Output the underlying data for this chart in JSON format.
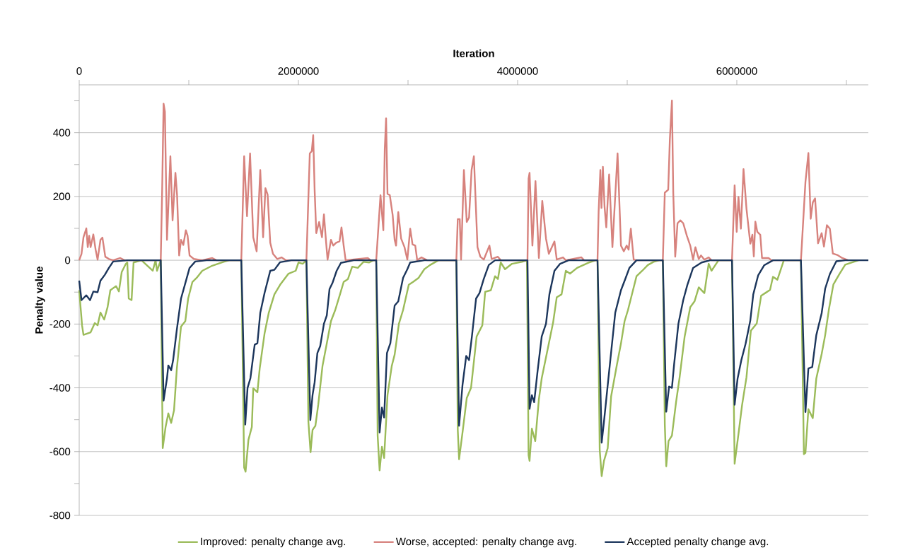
{
  "chart_data": {
    "type": "line",
    "xlabel": "Iteration",
    "ylabel": "Penalty value",
    "xlim": [
      0,
      7200000
    ],
    "ylim": [
      -800,
      550
    ],
    "xticks": [
      0,
      {
        "value": 1000000,
        "label": null
      },
      2000000,
      {
        "value": 3000000,
        "label": null
      },
      4000000,
      {
        "value": 5000000,
        "label": null
      },
      6000000,
      {
        "value": 7000000,
        "label": null
      }
    ],
    "yticks": [
      -800,
      {
        "value": -700,
        "label": null
      },
      -600,
      {
        "value": -500,
        "label": null
      },
      -400,
      {
        "value": -300,
        "label": null
      },
      -200,
      {
        "value": -100,
        "label": null
      },
      0,
      {
        "value": 100,
        "label": null
      },
      200,
      {
        "value": 300,
        "label": null
      },
      400,
      {
        "value": 500,
        "label": null
      }
    ],
    "grid": "y",
    "legend": "bottom",
    "line_style": "solid",
    "series": [
      {
        "name": "Improved: penalty change avg.",
        "color": "#9bbb59",
        "x": [
          0,
          26000,
          39000,
          104000,
          142000,
          168000,
          194000,
          228000,
          259000,
          284000,
          336000,
          362000,
          388000,
          426000,
          439000,
          452000,
          478000,
          496000,
          568000,
          671000,
          697000,
          710000,
          744000,
          762000,
          788000,
          813000,
          839000,
          865000,
          891000,
          929000,
          968000,
          994000,
          1033000,
          1072000,
          1123000,
          1214000,
          1317000,
          1368000,
          1479000,
          1505000,
          1518000,
          1544000,
          1575000,
          1588000,
          1626000,
          1647000,
          1691000,
          1730000,
          1781000,
          1833000,
          1910000,
          1975000,
          2001000,
          2039000,
          2073000,
          2091000,
          2111000,
          2129000,
          2155000,
          2181000,
          2220000,
          2259000,
          2297000,
          2336000,
          2375000,
          2413000,
          2452000,
          2491000,
          2542000,
          2594000,
          2646000,
          2684000,
          2710000,
          2723000,
          2741000,
          2762000,
          2782000,
          2813000,
          2852000,
          2878000,
          2917000,
          2955000,
          3007000,
          3046000,
          3097000,
          3149000,
          3201000,
          3252000,
          3278000,
          3441000,
          3454000,
          3466000,
          3497000,
          3536000,
          3575000,
          3626000,
          3678000,
          3704000,
          3756000,
          3794000,
          3820000,
          3846000,
          3885000,
          3949000,
          4039000,
          4085000,
          4100000,
          4109000,
          4130000,
          4161000,
          4194000,
          4220000,
          4254000,
          4285000,
          4324000,
          4357000,
          4401000,
          4440000,
          4478000,
          4543000,
          4646000,
          4711000,
          4729000,
          4749000,
          4767000,
          4788000,
          4822000,
          4853000,
          4904000,
          4943000,
          4976000,
          5007000,
          5046000,
          5085000,
          5137000,
          5188000,
          5240000,
          5291000,
          5325000,
          5343000,
          5356000,
          5377000,
          5408000,
          5446000,
          5477000,
          5524000,
          5575000,
          5614000,
          5653000,
          5704000,
          5743000,
          5769000,
          5833000,
          5956000,
          5980000,
          6015000,
          6048000,
          6088000,
          6128000,
          6182000,
          6222000,
          6263000,
          6303000,
          6330000,
          6370000,
          6429000,
          6585000,
          6612000,
          6626000,
          6653000,
          6693000,
          6725000,
          6774000,
          6806000,
          6841000,
          6881000,
          6935000,
          6989000,
          7056000,
          7110000
        ],
        "values": [
          -94,
          -204,
          -234,
          -226,
          -197,
          -204,
          -164,
          -186,
          -147,
          -94,
          -81,
          -98,
          -37,
          -11,
          -7,
          -120,
          -125,
          -7,
          0,
          -33,
          0,
          -33,
          0,
          -589,
          -523,
          -480,
          -510,
          -471,
          -339,
          -208,
          -191,
          -120,
          -68,
          -55,
          -33,
          -17,
          -5,
          0,
          0,
          -650,
          -663,
          -563,
          -523,
          -401,
          -414,
          -339,
          -230,
          -164,
          -107,
          -77,
          -42,
          -33,
          -7,
          -11,
          0,
          -506,
          -602,
          -532,
          -519,
          -453,
          -331,
          -261,
          -191,
          -156,
          -112,
          -68,
          -59,
          -20,
          -24,
          -5,
          -7,
          0,
          0,
          -550,
          -659,
          -585,
          -620,
          -423,
          -331,
          -296,
          -199,
          -156,
          -77,
          -68,
          -55,
          -28,
          -15,
          -5,
          0,
          0,
          -532,
          -624,
          -541,
          -432,
          -400,
          -239,
          -204,
          -99,
          -94,
          -50,
          -59,
          -7,
          -28,
          -11,
          -5,
          0,
          -611,
          -629,
          -528,
          -567,
          -436,
          -370,
          -313,
          -261,
          -195,
          -116,
          -107,
          -33,
          -42,
          -24,
          -8,
          0,
          0,
          -594,
          -677,
          -629,
          -589,
          -427,
          -331,
          -261,
          -191,
          -156,
          -103,
          -50,
          -33,
          -15,
          -5,
          0,
          0,
          -515,
          -646,
          -567,
          -550,
          -444,
          -370,
          -239,
          -147,
          -129,
          -85,
          -103,
          -11,
          -33,
          0,
          0,
          -638,
          -545,
          -454,
          -367,
          -221,
          -198,
          -111,
          -102,
          -93,
          -52,
          -61,
          0,
          0,
          -608,
          -604,
          -467,
          -495,
          -371,
          -294,
          -235,
          -152,
          -76,
          -44,
          -14,
          -6,
          0
        ]
      },
      {
        "name": "Worse, accepted: penalty change avg.",
        "color": "#d7827d",
        "x": [
          0,
          21000,
          39000,
          65000,
          78000,
          91000,
          104000,
          129000,
          150000,
          168000,
          194000,
          212000,
          238000,
          271000,
          310000,
          375000,
          413000,
          744000,
          757000,
          770000,
          782000,
          801000,
          832000,
          852000,
          878000,
          893000,
          912000,
          929000,
          950000,
          973000,
          989000,
          1007000,
          1046000,
          1123000,
          1214000,
          1252000,
          1479000,
          1505000,
          1531000,
          1559000,
          1588000,
          1619000,
          1652000,
          1678000,
          1699000,
          1719000,
          1743000,
          1768000,
          1807000,
          1846000,
          1885000,
          2073000,
          2104000,
          2122000,
          2135000,
          2148000,
          2163000,
          2189000,
          2215000,
          2233000,
          2253000,
          2266000,
          2297000,
          2318000,
          2344000,
          2375000,
          2393000,
          2413000,
          2431000,
          2633000,
          2659000,
          2710000,
          2749000,
          2775000,
          2788000,
          2800000,
          2813000,
          2834000,
          2860000,
          2878000,
          2891000,
          2911000,
          2937000,
          2968000,
          2994000,
          3020000,
          3041000,
          3066000,
          3084000,
          3123000,
          3175000,
          3441000,
          3454000,
          3472000,
          3484000,
          3510000,
          3536000,
          3557000,
          3580000,
          3601000,
          3619000,
          3634000,
          3660000,
          3691000,
          3743000,
          3763000,
          3820000,
          3846000,
          4090000,
          4100000,
          4109000,
          4135000,
          4163000,
          4194000,
          4225000,
          4259000,
          4285000,
          4336000,
          4357000,
          4414000,
          4440000,
          4582000,
          4607000,
          4729000,
          4739000,
          4755000,
          4765000,
          4778000,
          4793000,
          4809000,
          4835000,
          4865000,
          4912000,
          4943000,
          4969000,
          4995000,
          5013000,
          5033000,
          5059000,
          5085000,
          5325000,
          5343000,
          5374000,
          5389000,
          5408000,
          5420000,
          5438000,
          5459000,
          5485000,
          5511000,
          5544000,
          5575000,
          5601000,
          5622000,
          5653000,
          5673000,
          5704000,
          5743000,
          5769000,
          5956000,
          5980000,
          5999000,
          6015000,
          6037000,
          6061000,
          6088000,
          6123000,
          6142000,
          6155000,
          6169000,
          6187000,
          6214000,
          6230000,
          6290000,
          6316000,
          6585000,
          6626000,
          6653000,
          6674000,
          6693000,
          6714000,
          6741000,
          6774000,
          6795000,
          6822000,
          6849000,
          6876000,
          6921000,
          6962000,
          7016000
        ],
        "values": [
          0,
          20,
          72,
          100,
          41,
          77,
          41,
          81,
          33,
          2,
          64,
          71,
          11,
          4,
          0,
          7,
          0,
          0,
          221,
          491,
          466,
          64,
          326,
          125,
          274,
          204,
          15,
          64,
          48,
          94,
          77,
          15,
          4,
          0,
          7,
          0,
          0,
          326,
          138,
          335,
          72,
          28,
          283,
          72,
          226,
          206,
          55,
          20,
          4,
          9,
          0,
          0,
          335,
          342,
          392,
          221,
          85,
          120,
          72,
          144,
          55,
          2,
          64,
          46,
          55,
          59,
          103,
          46,
          0,
          7,
          0,
          0,
          204,
          94,
          348,
          445,
          208,
          204,
          142,
          64,
          46,
          151,
          68,
          41,
          2,
          99,
          50,
          46,
          0,
          9,
          0,
          0,
          129,
          129,
          2,
          283,
          120,
          134,
          283,
          326,
          169,
          41,
          11,
          2,
          46,
          4,
          11,
          0,
          0,
          256,
          274,
          46,
          248,
          7,
          186,
          68,
          20,
          59,
          2,
          9,
          0,
          9,
          0,
          0,
          151,
          283,
          164,
          293,
          169,
          103,
          269,
          41,
          335,
          46,
          28,
          46,
          33,
          99,
          2,
          0,
          0,
          212,
          221,
          379,
          501,
          212,
          11,
          116,
          125,
          116,
          77,
          46,
          2,
          41,
          4,
          15,
          2,
          9,
          0,
          0,
          235,
          89,
          199,
          99,
          286,
          162,
          52,
          80,
          12,
          121,
          89,
          80,
          7,
          7,
          0,
          0,
          245,
          336,
          130,
          181,
          194,
          53,
          85,
          43,
          110,
          99,
          21,
          16,
          7,
          0
        ]
      },
      {
        "name": "Accepted penalty change avg.",
        "color": "#1c365c",
        "x": [
          0,
          21000,
          65000,
          99000,
          129000,
          168000,
          194000,
          233000,
          271000,
          310000,
          439000,
          744000,
          770000,
          801000,
          813000,
          839000,
          857000,
          891000,
          929000,
          968000,
          1007000,
          1059000,
          1162000,
          1479000,
          1515000,
          1536000,
          1562000,
          1601000,
          1626000,
          1652000,
          1691000,
          1743000,
          1781000,
          1833000,
          1936000,
          2073000,
          2109000,
          2129000,
          2148000,
          2173000,
          2199000,
          2233000,
          2259000,
          2284000,
          2310000,
          2349000,
          2388000,
          2504000,
          2710000,
          2741000,
          2762000,
          2782000,
          2808000,
          2839000,
          2878000,
          2911000,
          2955000,
          2994000,
          3020000,
          3149000,
          3441000,
          3466000,
          3497000,
          3531000,
          3557000,
          3583000,
          3621000,
          3652000,
          3691000,
          3737000,
          3794000,
          4090000,
          4109000,
          4130000,
          4151000,
          4182000,
          4220000,
          4259000,
          4290000,
          4336000,
          4388000,
          4465000,
          4729000,
          4767000,
          4788000,
          4822000,
          4847000,
          4891000,
          4943000,
          4982000,
          5020000,
          5085000,
          5325000,
          5356000,
          5382000,
          5408000,
          5428000,
          5467000,
          5511000,
          5549000,
          5601000,
          5679000,
          5756000,
          5956000,
          5980000,
          6007000,
          6042000,
          6080000,
          6123000,
          6150000,
          6195000,
          6249000,
          6330000,
          6585000,
          6626000,
          6653000,
          6688000,
          6725000,
          6774000,
          6806000,
          6849000,
          6908000,
          6989000,
          7200000
        ],
        "values": [
          -64,
          -125,
          -110,
          -125,
          -98,
          -100,
          -64,
          -46,
          -24,
          -4,
          0,
          0,
          -440,
          -370,
          -330,
          -345,
          -313,
          -217,
          -120,
          -72,
          -24,
          -4,
          0,
          0,
          -515,
          -400,
          -370,
          -265,
          -260,
          -165,
          -103,
          -33,
          -30,
          -6,
          0,
          0,
          -501,
          -423,
          -383,
          -291,
          -269,
          -199,
          -173,
          -90,
          -72,
          -33,
          -8,
          0,
          0,
          -540,
          -462,
          -493,
          -291,
          -260,
          -142,
          -129,
          -55,
          -28,
          -7,
          0,
          0,
          -519,
          -392,
          -300,
          -313,
          -239,
          -120,
          -103,
          -59,
          -15,
          0,
          0,
          -466,
          -423,
          -445,
          -348,
          -239,
          -199,
          -107,
          -33,
          -11,
          0,
          0,
          -572,
          -506,
          -392,
          -309,
          -164,
          -94,
          -59,
          -24,
          0,
          0,
          -475,
          -396,
          -400,
          -326,
          -199,
          -125,
          -77,
          -24,
          -7,
          0,
          0,
          -453,
          -371,
          -312,
          -262,
          -189,
          -107,
          -47,
          -16,
          0,
          0,
          -476,
          -339,
          -335,
          -235,
          -166,
          -89,
          -43,
          -3,
          0,
          0
        ]
      }
    ]
  }
}
